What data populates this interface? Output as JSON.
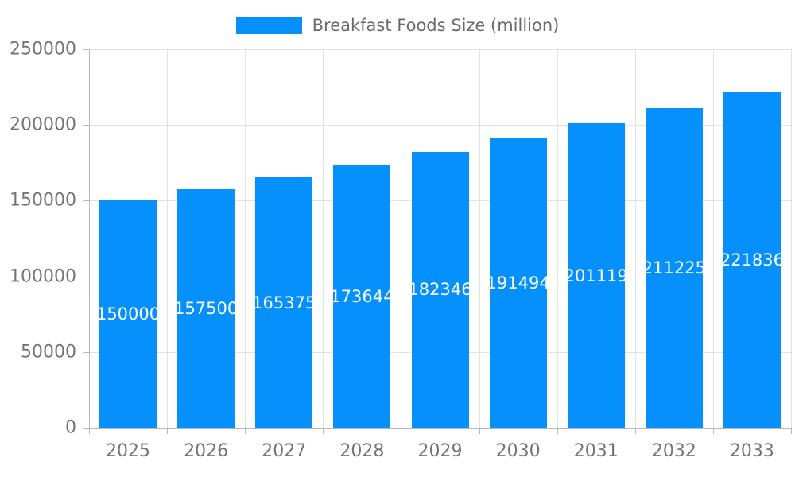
{
  "legend": {
    "label": "Breakfast Foods Size (million)"
  },
  "colors": {
    "bar": "#0590FB",
    "grid": "#e2e2e2",
    "axis": "#b9b9b9",
    "axis_text": "#757575",
    "legend_text": "#6b6b6b",
    "bar_label_text": "#ffffff",
    "background": "#ffffff"
  },
  "chart_data": {
    "type": "bar",
    "title": "",
    "xlabel": "",
    "ylabel": "",
    "categories": [
      "2025",
      "2026",
      "2027",
      "2028",
      "2029",
      "2030",
      "2031",
      "2032",
      "2033"
    ],
    "values": [
      150000,
      157500,
      165375,
      173644,
      182346,
      191494,
      201119,
      211225,
      221836
    ],
    "series_name": "Breakfast Foods Size (million)",
    "ylim": [
      0,
      250000
    ],
    "y_ticks": [
      0,
      50000,
      100000,
      150000,
      200000,
      250000
    ],
    "grid": true,
    "legend_position": "top",
    "bar_value_labels": "inside-center-white"
  }
}
